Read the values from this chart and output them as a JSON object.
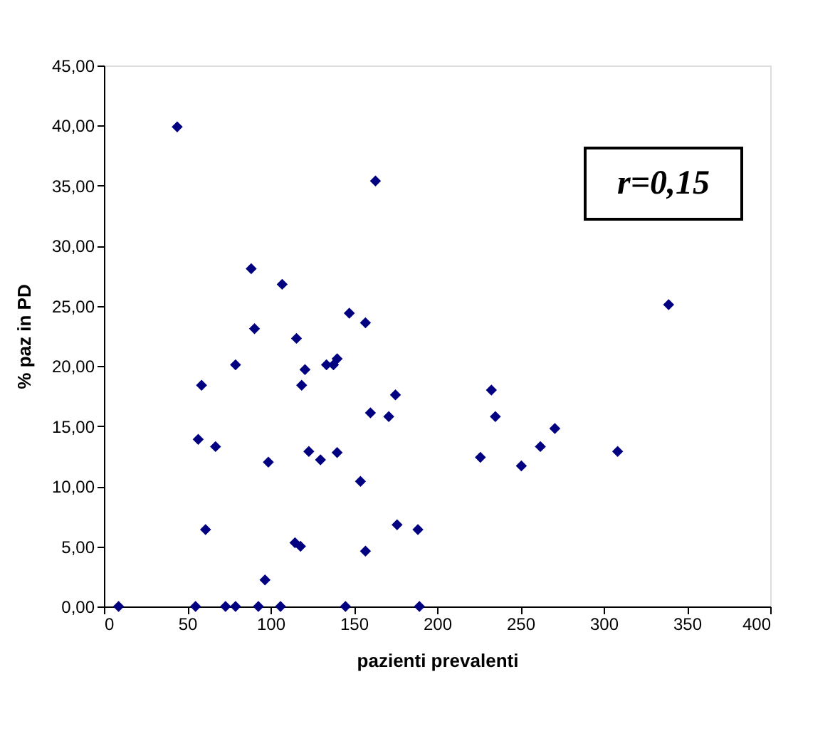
{
  "chart_data": {
    "type": "scatter",
    "xlabel": "pazienti prevalenti",
    "ylabel": "% paz in PD",
    "annotations": [
      "r=0,15"
    ],
    "x": [
      8.8,
      44,
      55,
      58.6,
      56.6,
      67,
      61,
      73,
      79,
      79,
      88.4,
      90.4,
      92.7,
      96.7,
      98.7,
      106,
      107,
      115.6,
      114.7,
      118,
      118.7,
      120.7,
      123,
      130,
      133.6,
      137.8,
      140,
      140,
      145,
      147.3,
      154,
      157,
      157,
      160,
      163,
      171,
      175,
      176,
      188.5,
      189.4,
      226,
      232.6,
      235,
      250.6,
      262,
      270.7,
      308.4,
      339
    ],
    "series": [
      {
        "color": "#000080",
        "values": [
          0,
          39.9,
          0,
          18.4,
          13.9,
          13.3,
          6.4,
          0,
          0,
          20.1,
          28.1,
          23.1,
          0,
          2.2,
          12.0,
          0,
          26.8,
          22.3,
          5.3,
          5.0,
          18.4,
          19.7,
          12.9,
          12.2,
          20.1,
          20.1,
          20.6,
          12.8,
          0,
          24.4,
          10.4,
          23.6,
          4.6,
          16.1,
          35.4,
          15.8,
          17.6,
          6.8,
          6.4,
          0,
          12.4,
          18.0,
          15.8,
          11.7,
          13.3,
          14.8,
          12.9,
          25.1
        ]
      }
    ],
    "xlim": [
      0,
      400
    ],
    "xticks": [
      0,
      50,
      100,
      150,
      200,
      250,
      300,
      350,
      400
    ],
    "ylim": [
      0,
      45
    ],
    "yticks": [
      {
        "value": 0,
        "label": "0,00"
      },
      {
        "value": 5,
        "label": "5,00"
      },
      {
        "value": 10,
        "label": "10,00"
      },
      {
        "value": 15,
        "label": "15,00"
      },
      {
        "value": 20,
        "label": "20,00"
      },
      {
        "value": 25,
        "label": "25,00"
      },
      {
        "value": 30,
        "label": "30,00"
      },
      {
        "value": 35,
        "label": "35,00"
      },
      {
        "value": 40,
        "label": "40,00"
      },
      {
        "value": 45,
        "label": "45,00"
      }
    ],
    "marker": "diamond",
    "grid": false,
    "legend": false
  }
}
